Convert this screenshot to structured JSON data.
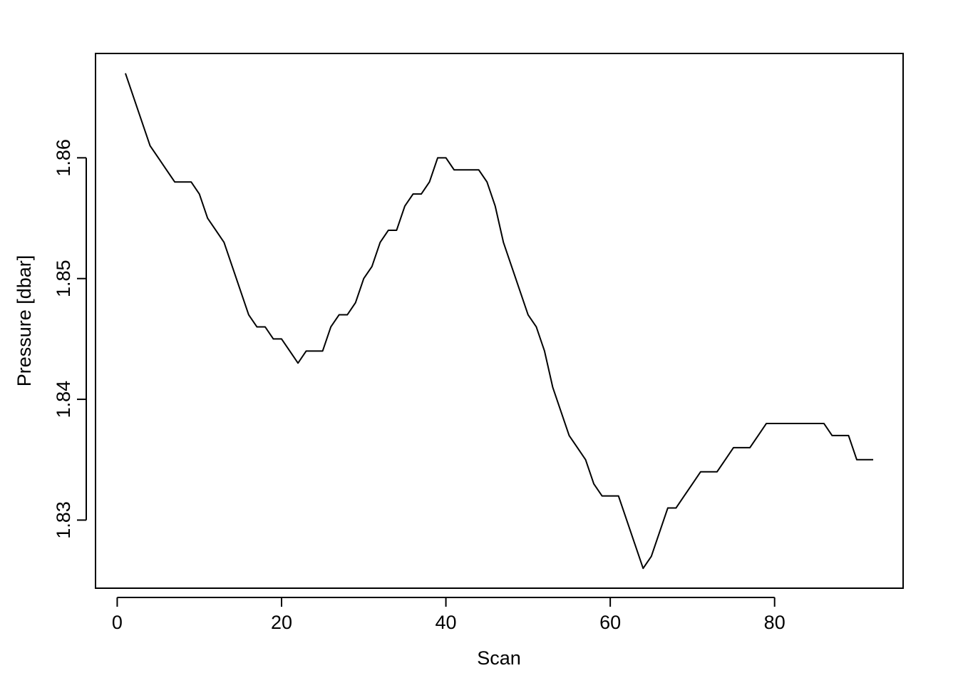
{
  "chart_data": {
    "type": "line",
    "xlabel": "Scan",
    "ylabel": "Pressure [dbar]",
    "x": [
      1,
      2,
      3,
      4,
      5,
      6,
      7,
      8,
      9,
      10,
      11,
      12,
      13,
      14,
      15,
      16,
      17,
      18,
      19,
      20,
      21,
      22,
      23,
      24,
      25,
      26,
      27,
      28,
      29,
      30,
      31,
      32,
      33,
      34,
      35,
      36,
      37,
      38,
      39,
      40,
      41,
      42,
      43,
      44,
      45,
      46,
      47,
      48,
      49,
      50,
      51,
      52,
      53,
      54,
      55,
      56,
      57,
      58,
      59,
      60,
      61,
      62,
      63,
      64,
      65,
      66,
      67,
      68,
      69,
      70,
      71,
      72,
      73,
      74,
      75,
      76,
      77,
      78,
      79,
      80,
      81,
      82,
      83,
      84,
      85,
      86,
      87,
      88,
      89,
      90,
      91,
      92
    ],
    "series": [
      {
        "color": "#000000",
        "values": [
          1.867,
          1.865,
          1.863,
          1.861,
          1.86,
          1.859,
          1.858,
          1.858,
          1.858,
          1.857,
          1.855,
          1.854,
          1.853,
          1.851,
          1.849,
          1.847,
          1.846,
          1.846,
          1.845,
          1.845,
          1.844,
          1.843,
          1.844,
          1.844,
          1.844,
          1.846,
          1.847,
          1.847,
          1.848,
          1.85,
          1.851,
          1.853,
          1.854,
          1.854,
          1.856,
          1.857,
          1.857,
          1.858,
          1.86,
          1.86,
          1.859,
          1.859,
          1.859,
          1.859,
          1.858,
          1.856,
          1.853,
          1.851,
          1.849,
          1.847,
          1.846,
          1.844,
          1.841,
          1.839,
          1.837,
          1.836,
          1.835,
          1.833,
          1.832,
          1.832,
          1.832,
          1.83,
          1.828,
          1.826,
          1.827,
          1.829,
          1.831,
          1.831,
          1.832,
          1.833,
          1.834,
          1.834,
          1.834,
          1.835,
          1.836,
          1.836,
          1.836,
          1.837,
          1.838,
          1.838,
          1.838,
          1.838,
          1.838,
          1.838,
          1.838,
          1.838,
          1.837,
          1.837,
          1.837,
          1.835,
          1.835,
          1.835
        ]
      }
    ],
    "xlim": [
      -2.64,
      95.64
    ],
    "xticks": [
      0,
      20,
      40,
      60,
      80
    ],
    "ylim": [
      1.82436,
      1.86864
    ],
    "yticks": [
      1.83,
      1.84,
      1.85,
      1.86
    ]
  }
}
